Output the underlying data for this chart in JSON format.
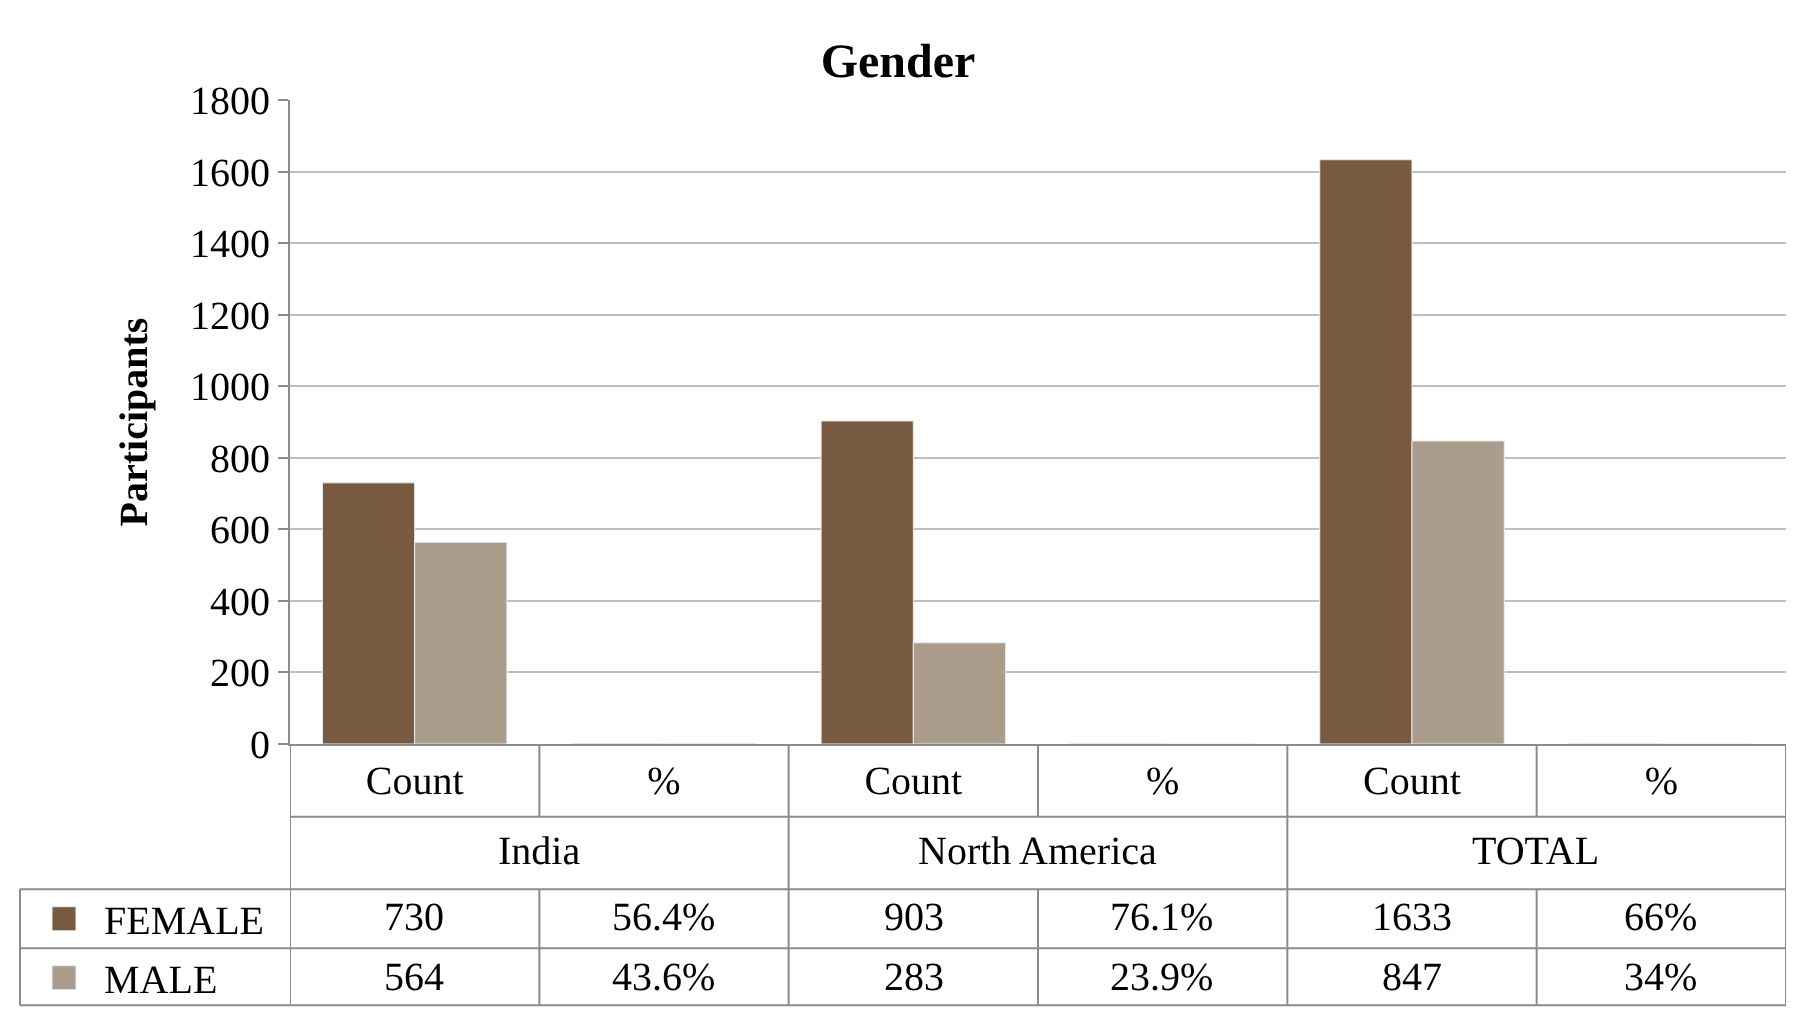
{
  "chart_data": {
    "type": "bar",
    "title": "Gender",
    "ylabel": "Participants",
    "categories": [
      "Count",
      "%",
      "Count",
      "%",
      "Count",
      "%"
    ],
    "annotations": [
      "India",
      "North America",
      "TOTAL"
    ],
    "series": [
      {
        "name": "FEMALE",
        "color": "#775a3f",
        "values": [
          730,
          0.564,
          903,
          0.761,
          1633,
          0.66
        ],
        "value_labels": [
          "730",
          "56.4%",
          "903",
          "76.1%",
          "1633",
          "66%"
        ]
      },
      {
        "name": "MALE",
        "color": "#ab9c8c",
        "values": [
          564,
          0.436,
          283,
          0.239,
          847,
          0.34
        ],
        "value_labels": [
          "564",
          "43.6%",
          "283",
          "23.9%",
          "847",
          "34%"
        ]
      }
    ],
    "ylim": [
      0,
      1800
    ],
    "yticks": [
      0,
      200,
      400,
      600,
      800,
      1000,
      1200,
      1400,
      1600,
      1800
    ],
    "grid": "y",
    "legend": "bottom left"
  }
}
